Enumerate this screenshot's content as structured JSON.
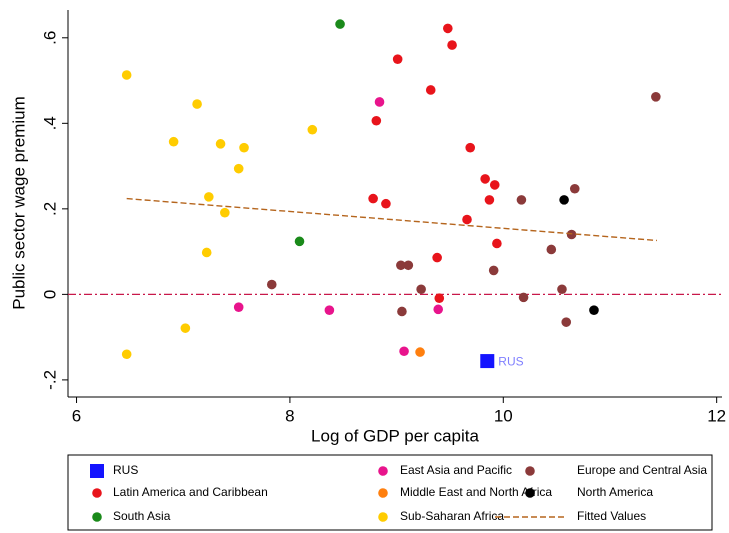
{
  "chart_data": {
    "type": "scatter",
    "x_label": "Log of GDP per capita",
    "y_label": "Public sector wage premium",
    "xlim": [
      5.92,
      12.05
    ],
    "ylim": [
      -0.24,
      0.665
    ],
    "xticks": [
      6,
      8,
      10,
      12
    ],
    "yticks": [
      {
        "value": -0.2,
        "label": "-.2"
      },
      0,
      {
        "value": 0.2,
        "label": ".2"
      },
      {
        "value": 0.4,
        "label": ".4"
      },
      {
        "value": 0.6,
        "label": ".6"
      }
    ],
    "grid": false,
    "reference_line": {
      "value": 0,
      "color": "#c8184a"
    },
    "annotation": "RUS",
    "series": [
      {
        "name": "RUS",
        "color": "#1414ff",
        "marker": "square",
        "x": [
          9.85
        ],
        "values": [
          -0.156
        ]
      },
      {
        "name": "East Asia and Pacific",
        "color": "#e8148c",
        "marker": "circle",
        "x": [
          8.84,
          7.52,
          8.37,
          9.07,
          9.39
        ],
        "values": [
          0.45,
          -0.03,
          -0.037,
          -0.133,
          -0.035
        ]
      },
      {
        "name": "Europe and Central Asia",
        "color": "#8b3a3a",
        "marker": "circle",
        "x": [
          11.43,
          10.67,
          10.17,
          10.64,
          10.45,
          9.04,
          9.11,
          9.91,
          7.83,
          9.23,
          10.55,
          10.19,
          9.05,
          10.59
        ],
        "values": [
          0.462,
          0.247,
          0.221,
          0.14,
          0.105,
          0.068,
          0.068,
          0.056,
          0.023,
          0.012,
          0.012,
          -0.007,
          -0.04,
          -0.065
        ]
      },
      {
        "name": "Latin America and Caribbean",
        "color": "#e8141b",
        "marker": "circle",
        "x": [
          9.48,
          9.52,
          9.01,
          9.32,
          8.81,
          9.69,
          9.83,
          9.92,
          9.87,
          8.78,
          8.9,
          9.66,
          9.94,
          9.38,
          9.4
        ],
        "values": [
          0.622,
          0.583,
          0.55,
          0.478,
          0.406,
          0.343,
          0.27,
          0.256,
          0.221,
          0.224,
          0.212,
          0.175,
          0.119,
          0.086,
          -0.009
        ]
      },
      {
        "name": "Middle East and North Africa",
        "color": "#ff7f0e",
        "marker": "circle",
        "x": [
          9.22
        ],
        "values": [
          -0.135
        ]
      },
      {
        "name": "North America",
        "color": "#000000",
        "marker": "circle",
        "x": [
          10.57,
          10.85
        ],
        "values": [
          0.221,
          -0.037
        ]
      },
      {
        "name": "South Asia",
        "color": "#1a8a1a",
        "marker": "circle",
        "x": [
          8.47,
          8.09
        ],
        "values": [
          0.632,
          0.124
        ]
      },
      {
        "name": "Sub-Saharan Africa",
        "color": "#ffcc00",
        "marker": "circle",
        "x": [
          6.47,
          7.13,
          6.91,
          7.35,
          7.57,
          8.21,
          7.52,
          7.24,
          7.39,
          7.22,
          7.02,
          6.47
        ],
        "values": [
          0.513,
          0.445,
          0.357,
          0.352,
          0.343,
          0.385,
          0.294,
          0.228,
          0.191,
          0.098,
          -0.079,
          -0.14
        ]
      },
      {
        "name": "Fitted Values",
        "color": "#b5651d",
        "marker": "dash",
        "x": [
          6.47,
          11.44
        ],
        "values": [
          0.224,
          0.126
        ]
      }
    ]
  }
}
